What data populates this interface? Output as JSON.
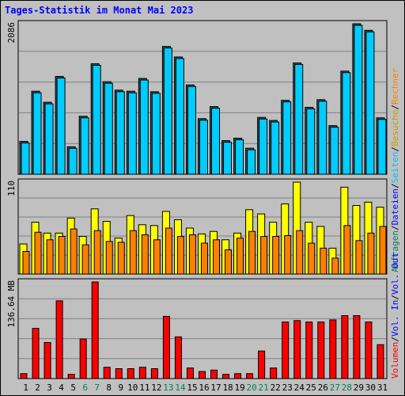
{
  "title": "Tages-Statistik im Monat Mai 2023",
  "colors": {
    "background": "#c0c0c0",
    "title": "#0000ff",
    "hits": "#00ccff",
    "files": "#00a0c8",
    "pages": "#00ccff",
    "visits": "#ffff00",
    "sites": "#ff8000",
    "volume": "#ff0000",
    "day_default": "#000000",
    "day_weekend": "#00805c",
    "legend_hits": "#008060",
    "legend_files": "#0000ff",
    "legend_pages": "#00c0ff",
    "legend_visits": "#c8a000",
    "legend_sites": "#ff8000",
    "legend_volume": "#ff0000",
    "legend_vol_in": "#0000ff",
    "legend_vol_out": "#0000ff"
  },
  "chart_data": [
    {
      "type": "bar",
      "ylabel": "2086",
      "ylim": [
        0,
        2086
      ],
      "categories": [
        "1",
        "2",
        "3",
        "4",
        "5",
        "6",
        "7",
        "8",
        "9",
        "10",
        "11",
        "12",
        "13",
        "14",
        "15",
        "16",
        "17",
        "18",
        "19",
        "20",
        "21",
        "22",
        "23",
        "24",
        "25",
        "26",
        "27",
        "28",
        "29",
        "30",
        "31"
      ],
      "legend": [
        "Anfragen",
        "Dateien",
        "Seiten"
      ],
      "series": [
        {
          "name": "Anfragen",
          "values": [
            456,
            1151,
            998,
            1356,
            381,
            804,
            1532,
            1283,
            1166,
            1151,
            1328,
            1144,
            1772,
            1626,
            1238,
            771,
            938,
            466,
            500,
            361,
            788,
            746,
            1025,
            1543,
            928,
            1034,
            674,
            1430,
            2086,
            1995,
            782
          ]
        },
        {
          "name": "Dateien",
          "values": [
            456,
            1151,
            998,
            1356,
            381,
            804,
            1532,
            1283,
            1166,
            1151,
            1328,
            1144,
            1772,
            1626,
            1238,
            771,
            938,
            466,
            500,
            361,
            788,
            746,
            1025,
            1543,
            928,
            1034,
            674,
            1430,
            2086,
            1995,
            782
          ]
        }
      ]
    },
    {
      "type": "bar",
      "ylabel": "110",
      "ylim": [
        0,
        110
      ],
      "categories": [
        "1",
        "2",
        "3",
        "4",
        "5",
        "6",
        "7",
        "8",
        "9",
        "10",
        "11",
        "12",
        "13",
        "14",
        "15",
        "16",
        "17",
        "18",
        "19",
        "20",
        "21",
        "22",
        "23",
        "24",
        "25",
        "26",
        "27",
        "28",
        "29",
        "30",
        "31"
      ],
      "legend": [
        "Besuche",
        "Rechner"
      ],
      "series": [
        {
          "name": "Besuche",
          "values": [
            36,
            62,
            49,
            49,
            67,
            45,
            78,
            63,
            43,
            70,
            59,
            58,
            75,
            65,
            55,
            48,
            51,
            41,
            49,
            77,
            72,
            62,
            84,
            110,
            62,
            57,
            31,
            104,
            82,
            86,
            80
          ]
        },
        {
          "name": "Rechner",
          "values": [
            27,
            50,
            41,
            45,
            54,
            35,
            52,
            39,
            38,
            52,
            47,
            41,
            55,
            45,
            47,
            37,
            41,
            29,
            43,
            51,
            45,
            45,
            46,
            52,
            37,
            31,
            19,
            58,
            40,
            49,
            57
          ]
        }
      ]
    },
    {
      "type": "bar",
      "ylabel": "136.64 MB",
      "ylim": [
        0,
        136.64
      ],
      "categories": [
        "1",
        "2",
        "3",
        "4",
        "5",
        "6",
        "7",
        "8",
        "9",
        "10",
        "11",
        "12",
        "13",
        "14",
        "15",
        "16",
        "17",
        "18",
        "19",
        "20",
        "21",
        "22",
        "23",
        "24",
        "25",
        "26",
        "27",
        "28",
        "29",
        "30",
        "31"
      ],
      "legend": [
        "Volumen",
        "Vol. In",
        "Vol. Out"
      ],
      "series": [
        {
          "name": "Volumen",
          "values": [
            7,
            71,
            51,
            110,
            6,
            56,
            136.64,
            16,
            14,
            14,
            16,
            14,
            88,
            59,
            15,
            10,
            12,
            6,
            7,
            7,
            39,
            15,
            80,
            82,
            80,
            80,
            83,
            89,
            89,
            80,
            48
          ]
        }
      ]
    }
  ],
  "x_axis": {
    "days": [
      {
        "label": "1",
        "weekend": false
      },
      {
        "label": "2",
        "weekend": false
      },
      {
        "label": "3",
        "weekend": false
      },
      {
        "label": "4",
        "weekend": false
      },
      {
        "label": "5",
        "weekend": false
      },
      {
        "label": "6",
        "weekend": true
      },
      {
        "label": "7",
        "weekend": true
      },
      {
        "label": "8",
        "weekend": false
      },
      {
        "label": "9",
        "weekend": false
      },
      {
        "label": "10",
        "weekend": false
      },
      {
        "label": "11",
        "weekend": false
      },
      {
        "label": "12",
        "weekend": false
      },
      {
        "label": "13",
        "weekend": true
      },
      {
        "label": "14",
        "weekend": true
      },
      {
        "label": "15",
        "weekend": false
      },
      {
        "label": "16",
        "weekend": false
      },
      {
        "label": "17",
        "weekend": false
      },
      {
        "label": "18",
        "weekend": false
      },
      {
        "label": "19",
        "weekend": false
      },
      {
        "label": "20",
        "weekend": true
      },
      {
        "label": "21",
        "weekend": true
      },
      {
        "label": "22",
        "weekend": false
      },
      {
        "label": "23",
        "weekend": false
      },
      {
        "label": "24",
        "weekend": false
      },
      {
        "label": "25",
        "weekend": false
      },
      {
        "label": "26",
        "weekend": false
      },
      {
        "label": "27",
        "weekend": true
      },
      {
        "label": "28",
        "weekend": true
      },
      {
        "label": "29",
        "weekend": false
      },
      {
        "label": "30",
        "weekend": false
      },
      {
        "label": "31",
        "weekend": false
      }
    ]
  },
  "legend_text": {
    "top": [
      "Anfragen",
      "/",
      "Dateien",
      "/",
      "Seiten",
      "/",
      "Besuche",
      "/",
      "Rechner"
    ],
    "bottom": [
      "Volumen",
      "/",
      "Vol. In",
      "/",
      "Vol. Out"
    ]
  }
}
